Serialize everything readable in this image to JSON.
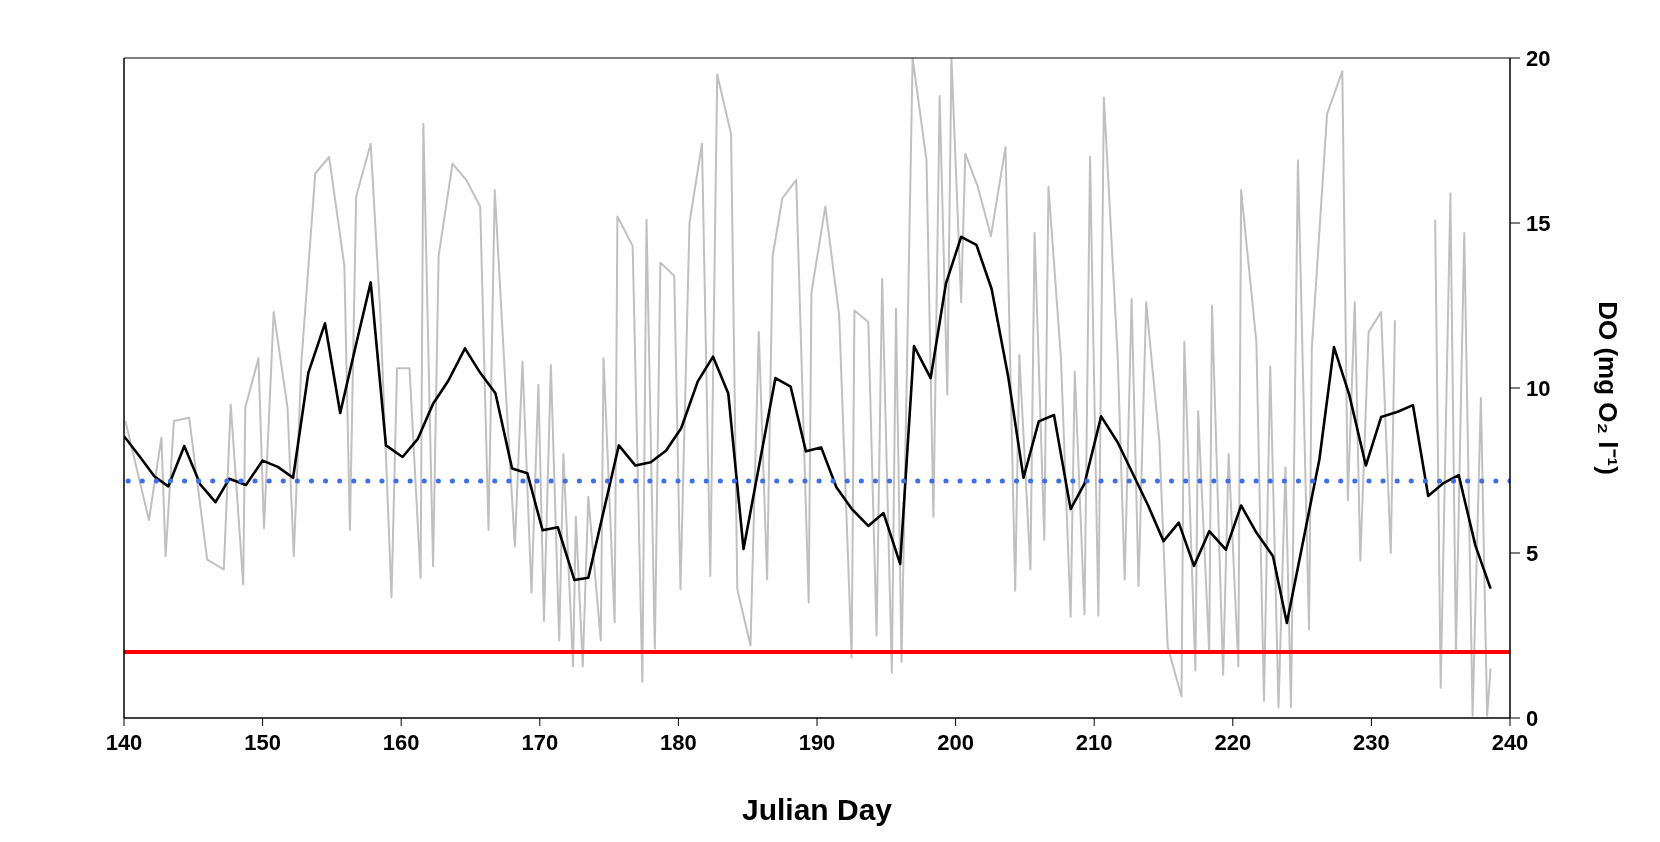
{
  "chart_data": {
    "type": "line",
    "xlabel": "Julian Day",
    "ylabel": "DO (mg O₂ l⁻¹)",
    "xlim": [
      140,
      240
    ],
    "xticks": [
      140,
      150,
      160,
      170,
      180,
      190,
      200,
      210,
      220,
      230,
      240
    ],
    "ylim": [
      0,
      20
    ],
    "yticks": [
      0,
      5,
      10,
      15,
      20
    ],
    "marker": "none",
    "series": [
      {
        "color": "#c0c0c0",
        "line_style": "solid",
        "x": [
          140.1,
          141.8,
          142.7,
          143.0,
          143.6,
          144.7,
          146.0,
          147.2,
          147.7,
          148.6,
          148.75,
          149.7,
          150.1,
          150.8,
          151.8,
          152.25,
          152.8,
          153.8,
          154.8,
          155.9,
          156.3,
          156.75,
          157.8,
          158.5,
          159.3,
          159.7,
          160.6,
          161.4,
          161.6,
          162.3,
          162.7,
          163.7,
          164.7,
          165.7,
          166.3,
          166.75,
          167.6,
          168.2,
          168.75,
          169.4,
          169.9,
          170.3,
          170.8,
          171.4,
          171.7,
          172.4,
          172.6,
          173.1,
          173.5,
          174.4,
          174.6,
          175.4,
          175.6,
          176.7,
          177.4,
          177.7,
          178.3,
          178.7,
          179.7,
          180.15,
          180.8,
          181.7,
          182.3,
          182.8,
          183.8,
          184.25,
          185.2,
          185.8,
          186.4,
          186.8,
          187.5,
          188.5,
          189.4,
          189.6,
          190.6,
          191.6,
          192.5,
          192.7,
          193.7,
          194.3,
          194.7,
          195.4,
          195.7,
          196.1,
          196.9,
          197.9,
          198.4,
          198.85,
          199.4,
          199.7,
          200.4,
          200.7,
          201.6,
          202.55,
          203.6,
          204.3,
          204.6,
          205.4,
          205.7,
          206.4,
          206.7,
          207.6,
          208.3,
          208.6,
          209.3,
          209.7,
          210.3,
          210.7,
          211.7,
          212.2,
          212.7,
          213.2,
          213.75,
          214.7,
          215.3,
          216.3,
          216.5,
          217.3,
          217.5,
          218.3,
          218.5,
          219.3,
          219.7,
          220.4,
          220.6,
          221.7,
          222.25,
          222.7,
          223.3,
          223.8,
          224.2,
          224.7,
          225.5,
          225.7,
          226.8,
          227.9,
          228.3,
          228.8,
          229.2,
          229.8,
          230.7,
          231.4,
          231.7,
          232.0,
          234.6,
          235.0,
          235.7,
          236.1,
          236.7,
          237.3,
          237.9,
          238.35,
          238.6
        ],
        "values": [
          9.0,
          6.0,
          8.5,
          4.9,
          9.0,
          9.1,
          4.8,
          4.5,
          9.5,
          4.05,
          9.4,
          10.9,
          5.75,
          12.3,
          9.4,
          4.9,
          10.8,
          16.5,
          17.0,
          13.7,
          5.7,
          15.8,
          17.4,
          12.2,
          3.66,
          10.6,
          10.6,
          4.25,
          18.0,
          4.6,
          14.0,
          16.8,
          16.3,
          15.5,
          5.7,
          16.0,
          9.5,
          5.2,
          10.8,
          3.8,
          10.1,
          2.94,
          10.7,
          2.35,
          8.0,
          1.57,
          6.1,
          1.57,
          6.7,
          2.35,
          10.9,
          2.9,
          15.2,
          14.3,
          1.1,
          15.1,
          2.1,
          13.8,
          13.4,
          3.9,
          15.0,
          17.4,
          4.3,
          19.5,
          17.7,
          3.9,
          2.2,
          11.7,
          4.2,
          14.0,
          15.75,
          16.3,
          3.5,
          12.9,
          15.5,
          12.2,
          1.83,
          12.35,
          12.0,
          2.5,
          13.3,
          1.37,
          12.4,
          1.7,
          20,
          16.9,
          6.1,
          18.85,
          9.8,
          20,
          12.6,
          17.1,
          16.1,
          14.6,
          17.3,
          3.86,
          11.0,
          4.5,
          14.7,
          5.4,
          16.1,
          10.9,
          3.07,
          10.5,
          3.14,
          17.0,
          3.1,
          18.8,
          10.9,
          4.2,
          12.7,
          4.0,
          12.6,
          8.4,
          2.16,
          0.65,
          11.4,
          1.44,
          9.3,
          1.96,
          12.5,
          1.31,
          8.0,
          1.57,
          16.0,
          11.4,
          0.52,
          10.65,
          0.33,
          7.6,
          0.33,
          16.9,
          2.68,
          11.2,
          18.3,
          19.6,
          6.6,
          12.6,
          4.77,
          11.7,
          12.3,
          5.0,
          12.05,
          null,
          15.1,
          0.92,
          15.9,
          1.96,
          14.7,
          0.07,
          9.7,
          0.07,
          1.5
        ]
      },
      {
        "color": "#000000",
        "line_style": "solid",
        "x": [
          140.0,
          141.16,
          142.2,
          143.2,
          144.35,
          145.5,
          146.6,
          147.6,
          148.8,
          150.0,
          151.1,
          152.2,
          153.3,
          154.5,
          155.6,
          156.7,
          157.8,
          158.9,
          160.1,
          161.2,
          162.3,
          163.4,
          164.6,
          165.7,
          166.8,
          168.0,
          169.1,
          170.2,
          171.3,
          172.5,
          173.5,
          175.7,
          176.9,
          178.0,
          179.1,
          180.2,
          181.4,
          182.5,
          183.6,
          184.7,
          187.0,
          188.1,
          189.2,
          190.3,
          191.4,
          192.5,
          193.7,
          194.8,
          196.0,
          197.0,
          198.2,
          199.3,
          200.4,
          201.5,
          202.6,
          203.8,
          204.9,
          206.0,
          207.1,
          208.3,
          209.3,
          210.5,
          211.7,
          213.9,
          215.0,
          216.1,
          217.2,
          218.3,
          219.5,
          220.6,
          221.7,
          222.9,
          223.9,
          226.25,
          227.3,
          228.4,
          229.6,
          230.7,
          231.9,
          233.0,
          234.1,
          235.2,
          236.3,
          237.5,
          238.6
        ],
        "values": [
          8.54,
          7.91,
          7.32,
          7.02,
          8.24,
          7.08,
          6.54,
          7.25,
          7.06,
          7.8,
          7.61,
          7.28,
          10.46,
          11.96,
          9.24,
          11.24,
          13.2,
          8.26,
          7.91,
          8.46,
          9.52,
          10.22,
          11.2,
          10.46,
          9.84,
          7.56,
          7.42,
          5.69,
          5.78,
          4.18,
          4.25,
          8.26,
          7.65,
          7.75,
          8.1,
          8.78,
          10.2,
          10.95,
          9.83,
          5.12,
          10.3,
          10.04,
          8.08,
          8.2,
          6.99,
          6.34,
          5.82,
          6.21,
          4.67,
          11.27,
          10.3,
          13.16,
          14.58,
          14.34,
          13.0,
          10.33,
          7.28,
          8.99,
          9.18,
          6.33,
          7.1,
          9.14,
          8.35,
          6.43,
          5.36,
          5.92,
          4.61,
          5.66,
          5.1,
          6.44,
          5.62,
          4.9,
          2.88,
          7.84,
          11.24,
          9.8,
          7.65,
          9.12,
          9.28,
          9.48,
          6.73,
          7.12,
          7.36,
          5.23,
          3.92
        ]
      }
    ],
    "ref_lines": [
      {
        "axis": "y",
        "value": 7.18,
        "color": "#3c6ef0",
        "line_style": "dotted"
      },
      {
        "axis": "y",
        "value": 2,
        "color": "#ff0000",
        "line_style": "solid"
      }
    ]
  }
}
